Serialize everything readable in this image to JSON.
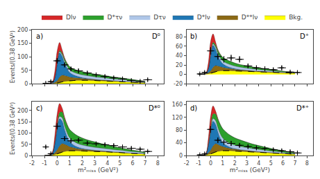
{
  "chart_data": [
    {
      "type": "area",
      "stacked": true,
      "title": "D⁰",
      "annotations": [
        "a)"
      ],
      "ylabel": "Events/(0.38 GeV²)",
      "legend": "top",
      "grid": false,
      "tick_labels": "y",
      "xlim": [
        -2,
        8.5
      ],
      "xticks": [
        -2,
        -1,
        0,
        1,
        2,
        3,
        4,
        5,
        6,
        7,
        8
      ],
      "ylim": [
        0,
        200
      ],
      "yticks": [
        0,
        50,
        100,
        150,
        200
      ],
      "x": [
        -1.0,
        -0.7,
        -0.4,
        -0.2,
        0.0,
        0.2,
        0.4,
        0.6,
        0.8,
        1.0,
        1.3,
        1.6,
        2.0,
        2.5,
        3.0,
        3.5,
        4.0,
        4.5,
        5.0,
        5.5,
        6.0,
        6.5,
        7.0
      ],
      "series": [
        {
          "name": "Bkg.",
          "color": "#ffff00",
          "values": [
            0,
            0.5,
            1,
            2,
            3,
            5,
            7,
            9,
            10,
            11,
            12,
            13,
            13,
            13,
            12,
            11,
            10,
            9,
            8,
            7,
            6,
            5,
            4
          ]
        },
        {
          "name": "D**lν",
          "color": "#8b6914",
          "values": [
            0,
            0.5,
            1,
            3,
            8,
            20,
            25,
            22,
            18,
            14,
            11,
            9,
            7,
            5,
            4,
            3,
            2.5,
            2,
            1.5,
            1,
            0.8,
            0.5,
            0.3
          ]
        },
        {
          "name": "D*lν",
          "color": "#1f77b4",
          "values": [
            0,
            0,
            2,
            15,
            60,
            90,
            70,
            45,
            28,
            17,
            10,
            6,
            3,
            1.5,
            0.8,
            0.4,
            0.2,
            0.1,
            0,
            0,
            0,
            0,
            0
          ]
        },
        {
          "name": "Dτν",
          "color": "#aec6e8",
          "values": [
            0,
            0,
            0,
            0,
            2,
            4,
            6,
            8,
            9,
            10,
            10,
            10,
            10,
            10,
            9,
            9,
            8,
            7,
            7,
            6,
            5,
            4,
            3
          ]
        },
        {
          "name": "D*τν",
          "color": "#2ca02c",
          "values": [
            0,
            0,
            0,
            0,
            2,
            4,
            6,
            8,
            10,
            11,
            12,
            12,
            12,
            11,
            10,
            9,
            8,
            7,
            6,
            5,
            4,
            3,
            2
          ]
        },
        {
          "name": "Dlν",
          "color": "#d62728",
          "values": [
            0,
            0,
            2,
            20,
            45,
            30,
            12,
            4,
            1,
            0,
            0,
            0,
            0,
            0,
            0,
            0,
            0,
            0,
            0,
            0,
            0,
            0,
            0
          ]
        },
        {
          "type": "scatter",
          "marker": "plus",
          "color": "#000000",
          "x": [
            -0.9,
            -0.5,
            0.0,
            0.6,
            1.1,
            1.7,
            2.4,
            3.1,
            3.8,
            4.5,
            5.2,
            5.9,
            6.6,
            7.2
          ],
          "values": [
            2,
            8,
            85,
            70,
            55,
            48,
            40,
            33,
            27,
            22,
            18,
            12,
            9,
            15
          ],
          "yerr": [
            2,
            5,
            10,
            9,
            8,
            8,
            7,
            6,
            6,
            5,
            5,
            4,
            4,
            5
          ],
          "xerr": [
            0.25,
            0.25,
            0.3,
            0.3,
            0.3,
            0.35,
            0.35,
            0.35,
            0.35,
            0.35,
            0.35,
            0.35,
            0.35,
            0.35
          ]
        }
      ]
    },
    {
      "type": "area",
      "stacked": true,
      "title": "D⁺",
      "annotations": [
        "b)"
      ],
      "grid": false,
      "tick_labels": "y",
      "xlim": [
        -2,
        8.5
      ],
      "xticks": [
        -2,
        -1,
        0,
        1,
        2,
        3,
        4,
        5,
        6,
        7,
        8
      ],
      "ylim": [
        -20,
        95
      ],
      "yticks": [
        -20,
        0,
        20,
        40,
        60,
        80
      ],
      "x": [
        -1.0,
        -0.7,
        -0.4,
        -0.2,
        0.0,
        0.2,
        0.4,
        0.6,
        0.8,
        1.0,
        1.3,
        1.6,
        2.0,
        2.5,
        3.0,
        3.5,
        4.0,
        4.5,
        5.0,
        5.5,
        6.0,
        6.5,
        7.0
      ],
      "series": [
        {
          "name": "Bkg.",
          "color": "#ffff00",
          "values": [
            0,
            0.3,
            0.7,
            1.5,
            2.5,
            4,
            5.5,
            7,
            7.5,
            8,
            8,
            8,
            7.5,
            7,
            6.5,
            6,
            5.5,
            5,
            4.5,
            4,
            3.5,
            3,
            2.5
          ]
        },
        {
          "name": "D**lν",
          "color": "#8b6914",
          "values": [
            0,
            0.3,
            0.8,
            2,
            5,
            11,
            13,
            11,
            9,
            7,
            5.5,
            4.5,
            3.5,
            2.5,
            2,
            1.5,
            1.2,
            1,
            0.8,
            0.6,
            0.4,
            0.3,
            0.2
          ]
        },
        {
          "name": "D*lν",
          "color": "#1f77b4",
          "values": [
            0,
            0,
            1,
            8,
            32,
            47,
            36,
            22,
            13,
            8,
            4.5,
            2.5,
            1.2,
            0.6,
            0.3,
            0.1,
            0,
            0,
            0,
            0,
            0,
            0,
            0
          ]
        },
        {
          "name": "Dτν",
          "color": "#aec6e8",
          "values": [
            0,
            0,
            0,
            0,
            1.5,
            3,
            4,
            5,
            6,
            6,
            6,
            6,
            5.5,
            5,
            4.5,
            4,
            3.5,
            3,
            2.5,
            2,
            1.5,
            1,
            0.5
          ]
        },
        {
          "name": "D*τν",
          "color": "#2ca02c",
          "values": [
            0,
            0,
            0,
            0,
            1.5,
            3,
            4.5,
            6,
            7,
            7.5,
            7.5,
            7,
            6.5,
            5.5,
            5,
            4,
            3.5,
            3,
            2.5,
            2,
            1.5,
            1,
            0.5
          ]
        },
        {
          "name": "Dlν",
          "color": "#d62728",
          "values": [
            0,
            0,
            1,
            12,
            28,
            18,
            7,
            2,
            0.5,
            0,
            0,
            0,
            0,
            0,
            0,
            0,
            0,
            0,
            0,
            0,
            0,
            0,
            0
          ]
        },
        {
          "type": "scatter",
          "marker": "plus",
          "color": "#000000",
          "x": [
            -0.9,
            -0.5,
            0.0,
            0.6,
            1.1,
            1.7,
            2.4,
            3.1,
            3.8,
            4.5,
            5.2,
            5.9,
            6.6,
            7.2
          ],
          "values": [
            1,
            4,
            50,
            38,
            32,
            35,
            32,
            18,
            14,
            12,
            10,
            14,
            5,
            4
          ],
          "yerr": [
            2,
            3,
            8,
            7,
            7,
            7,
            7,
            5,
            5,
            5,
            4,
            5,
            3,
            3
          ],
          "xerr": [
            0.25,
            0.25,
            0.3,
            0.3,
            0.3,
            0.35,
            0.35,
            0.35,
            0.35,
            0.35,
            0.35,
            0.35,
            0.35,
            0.35
          ]
        }
      ]
    },
    {
      "type": "area",
      "stacked": true,
      "title": "D*⁰",
      "annotations": [
        "c)"
      ],
      "xlabel": "m²ₘᵢₛₛ (GeV²)",
      "ylabel": "Events/(0.38 GeV²)",
      "grid": false,
      "xlim": [
        -2,
        8.5
      ],
      "xticks": [
        -2,
        -1,
        0,
        1,
        2,
        3,
        4,
        5,
        6,
        7,
        8
      ],
      "ylim": [
        0,
        240
      ],
      "yticks": [
        0,
        50,
        100,
        150,
        200
      ],
      "x": [
        -1.0,
        -0.7,
        -0.4,
        -0.2,
        0.0,
        0.2,
        0.4,
        0.6,
        0.8,
        1.0,
        1.3,
        1.6,
        2.0,
        2.5,
        3.0,
        3.5,
        4.0,
        4.5,
        5.0,
        5.5,
        6.0,
        6.5,
        7.0
      ],
      "series": [
        {
          "name": "Bkg.",
          "color": "#ffff00",
          "values": [
            0,
            0.5,
            1.5,
            4,
            7,
            11,
            15,
            18,
            20,
            21,
            21,
            21,
            20,
            19,
            18,
            17,
            16,
            14,
            13,
            11,
            9,
            8,
            6
          ]
        },
        {
          "name": "D**lν",
          "color": "#8b6914",
          "values": [
            0,
            0.5,
            2,
            7,
            18,
            32,
            38,
            32,
            25,
            18,
            14,
            10,
            8,
            6,
            4.5,
            3.5,
            2.5,
            2,
            1.5,
            1,
            0.8,
            0.5,
            0.3
          ]
        },
        {
          "name": "D*lν",
          "color": "#1f77b4",
          "values": [
            0,
            0,
            5,
            35,
            90,
            120,
            100,
            65,
            38,
            22,
            12,
            7,
            3.5,
            1.5,
            0.7,
            0.3,
            0.1,
            0,
            0,
            0,
            0,
            0,
            0
          ]
        },
        {
          "name": "Dτν",
          "color": "#aec6e8",
          "values": [
            0,
            0,
            0,
            1,
            5,
            10,
            14,
            16,
            17,
            17,
            17,
            16,
            15,
            14,
            13,
            12,
            11,
            10,
            9,
            8,
            7,
            6,
            4
          ]
        },
        {
          "name": "D*τν",
          "color": "#2ca02c",
          "values": [
            0,
            0,
            0,
            2,
            8,
            18,
            26,
            32,
            36,
            37,
            36,
            34,
            31,
            27,
            24,
            20,
            17,
            14,
            11,
            9,
            7,
            5,
            4
          ]
        },
        {
          "name": "Dlν",
          "color": "#d62728",
          "values": [
            0,
            0,
            5,
            30,
            55,
            40,
            18,
            7,
            2,
            0.5,
            0,
            0,
            0,
            0,
            0,
            0,
            0,
            0,
            0,
            0,
            0,
            0,
            0
          ]
        },
        {
          "type": "scatter",
          "marker": "plus",
          "color": "#000000",
          "x": [
            -0.9,
            -0.5,
            0.0,
            0.6,
            1.1,
            1.7,
            2.4,
            3.1,
            3.8,
            4.5,
            5.2,
            5.9,
            6.6,
            7.2
          ],
          "values": [
            38,
            8,
            130,
            75,
            65,
            68,
            55,
            52,
            48,
            44,
            38,
            32,
            28,
            18
          ],
          "yerr": [
            7,
            4,
            15,
            10,
            10,
            10,
            9,
            9,
            8,
            8,
            7,
            7,
            6,
            5
          ],
          "xerr": [
            0.25,
            0.25,
            0.3,
            0.3,
            0.3,
            0.35,
            0.35,
            0.35,
            0.35,
            0.35,
            0.35,
            0.35,
            0.35,
            0.35
          ]
        }
      ]
    },
    {
      "type": "area",
      "stacked": true,
      "title": "D*⁺",
      "annotations": [
        "d)"
      ],
      "xlabel": "m²ₘᵢₛₛ (GeV²)",
      "grid": false,
      "xlim": [
        -2,
        8.5
      ],
      "xticks": [
        -2,
        -1,
        0,
        1,
        2,
        3,
        4,
        5,
        6,
        7,
        8
      ],
      "ylim": [
        0,
        170
      ],
      "yticks": [
        0,
        40,
        80,
        120,
        160
      ],
      "x": [
        -1.0,
        -0.7,
        -0.4,
        -0.2,
        0.0,
        0.2,
        0.4,
        0.6,
        0.8,
        1.0,
        1.3,
        1.6,
        2.0,
        2.5,
        3.0,
        3.5,
        4.0,
        4.5,
        5.0,
        5.5,
        6.0,
        6.5,
        7.0
      ],
      "series": [
        {
          "name": "Bkg.",
          "color": "#ffff00",
          "values": [
            0,
            0.3,
            1,
            3,
            5,
            8,
            11,
            13,
            14,
            15,
            15,
            15,
            14,
            13,
            12,
            11,
            10,
            9,
            8,
            7,
            6,
            5,
            4
          ]
        },
        {
          "name": "D**lν",
          "color": "#8b6914",
          "values": [
            0,
            0.3,
            1.5,
            5,
            12,
            22,
            26,
            22,
            17,
            13,
            10,
            7.5,
            6,
            4.5,
            3.5,
            2.5,
            2,
            1.5,
            1,
            0.8,
            0.5,
            0.3,
            0.2
          ]
        },
        {
          "name": "D*lν",
          "color": "#1f77b4",
          "values": [
            0,
            0,
            3,
            22,
            58,
            78,
            62,
            40,
            23,
            13,
            7,
            3.5,
            1.5,
            0.6,
            0.3,
            0.1,
            0,
            0,
            0,
            0,
            0,
            0,
            0
          ]
        },
        {
          "name": "Dτν",
          "color": "#aec6e8",
          "values": [
            0,
            0,
            0,
            1,
            4,
            8,
            11,
            13,
            14,
            14,
            13,
            12,
            11,
            10,
            9,
            8,
            7,
            6,
            5,
            4.5,
            3.5,
            2.5,
            2
          ]
        },
        {
          "name": "D*τν",
          "color": "#2ca02c",
          "values": [
            0,
            0,
            0,
            2,
            7,
            15,
            21,
            26,
            29,
            29,
            28,
            26,
            23,
            20,
            17,
            14,
            12,
            10,
            8,
            6,
            5,
            3.5,
            2.5
          ]
        },
        {
          "name": "Dlν",
          "color": "#d62728",
          "values": [
            0,
            0,
            2,
            18,
            38,
            25,
            10,
            3,
            0.5,
            0,
            0,
            0,
            0,
            0,
            0,
            0,
            0,
            0,
            0,
            0,
            0,
            0,
            0
          ]
        },
        {
          "type": "scatter",
          "marker": "plus",
          "color": "#000000",
          "x": [
            -0.9,
            -0.5,
            0.0,
            0.6,
            1.1,
            1.7,
            2.4,
            3.1,
            3.8,
            4.5,
            5.2,
            5.9,
            6.6,
            7.2
          ],
          "values": [
            2,
            5,
            82,
            48,
            42,
            38,
            32,
            28,
            24,
            22,
            18,
            15,
            12,
            8
          ],
          "yerr": [
            2,
            4,
            11,
            9,
            8,
            8,
            7,
            7,
            6,
            6,
            5,
            5,
            5,
            4
          ],
          "xerr": [
            0.25,
            0.25,
            0.3,
            0.3,
            0.3,
            0.35,
            0.35,
            0.35,
            0.35,
            0.35,
            0.35,
            0.35,
            0.35,
            0.35
          ]
        }
      ]
    }
  ]
}
